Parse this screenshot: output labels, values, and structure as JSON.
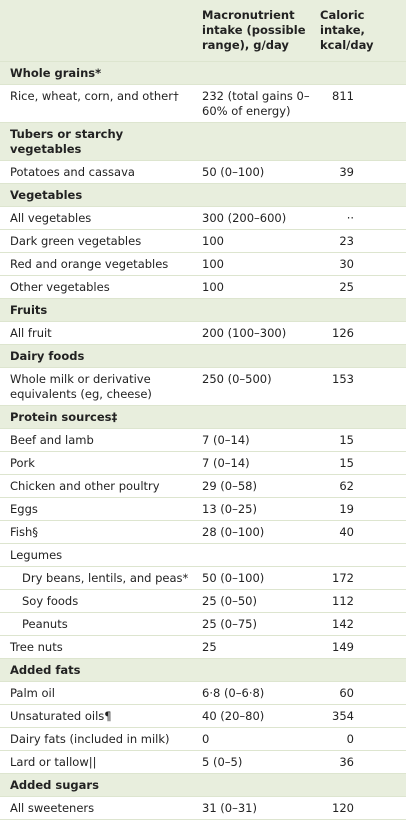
{
  "header": {
    "columns": [
      "",
      "Macronutrient intake (possible range), g/day",
      "Caloric intake, kcal/day"
    ]
  },
  "sections": [
    {
      "title": "Whole grains*",
      "rows": [
        {
          "label": "Rice, wheat, corn, and other†",
          "intake": "232 (total gains 0–60% of energy)",
          "kcal": "811"
        }
      ]
    },
    {
      "title": "Tubers or starchy vegetables",
      "rows": [
        {
          "label": "Potatoes and cassava",
          "intake": "50 (0–100)",
          "kcal": "39"
        }
      ]
    },
    {
      "title": "Vegetables",
      "rows": [
        {
          "label": "All vegetables",
          "intake": "300 (200–600)",
          "kcal": "··"
        },
        {
          "label": "Dark green vegetables",
          "intake": "100",
          "kcal": "23"
        },
        {
          "label": "Red and orange vegetables",
          "intake": "100",
          "kcal": "30"
        },
        {
          "label": "Other vegetables",
          "intake": "100",
          "kcal": "25"
        }
      ]
    },
    {
      "title": "Fruits",
      "rows": [
        {
          "label": "All fruit",
          "intake": "200 (100–300)",
          "kcal": "126"
        }
      ]
    },
    {
      "title": "Dairy foods",
      "rows": [
        {
          "label": "Whole milk or derivative equivalents (eg, cheese)",
          "intake": "250 (0–500)",
          "kcal": "153"
        }
      ]
    },
    {
      "title": "Protein sources‡",
      "rows": [
        {
          "label": "Beef and lamb",
          "intake": "7 (0–14)",
          "kcal": "15"
        },
        {
          "label": "Pork",
          "intake": "7 (0–14)",
          "kcal": "15"
        },
        {
          "label": "Chicken and other poultry",
          "intake": "29 (0–58)",
          "kcal": "62"
        },
        {
          "label": "Eggs",
          "intake": "13 (0–25)",
          "kcal": "19"
        },
        {
          "label": "Fish§",
          "intake": "28 (0–100)",
          "kcal": "40"
        },
        {
          "label": "Legumes",
          "rows": [
            {
              "label": "Dry beans, lentils, and peas*",
              "intake": "50 (0–100)",
              "kcal": "172"
            },
            {
              "label": "Soy foods",
              "intake": "25 (0–50)",
              "kcal": "112"
            },
            {
              "label": "Peanuts",
              "intake": "25 (0–75)",
              "kcal": "142"
            }
          ]
        },
        {
          "label": "Tree nuts",
          "intake": "25",
          "kcal": "149"
        }
      ]
    },
    {
      "title": "Added fats",
      "rows": [
        {
          "label": "Palm oil",
          "intake": "6·8 (0–6·8)",
          "kcal": "60"
        },
        {
          "label": "Unsaturated oils¶",
          "intake": "40 (20–80)",
          "kcal": "354"
        },
        {
          "label": "Dairy fats (included in milk)",
          "intake": "0",
          "kcal": "0"
        },
        {
          "label": "Lard or tallow||",
          "intake": "5 (0–5)",
          "kcal": "36"
        }
      ]
    },
    {
      "title": "Added sugars",
      "rows": [
        {
          "label": "All sweeteners",
          "intake": "31 (0–31)",
          "kcal": "120"
        }
      ]
    }
  ]
}
